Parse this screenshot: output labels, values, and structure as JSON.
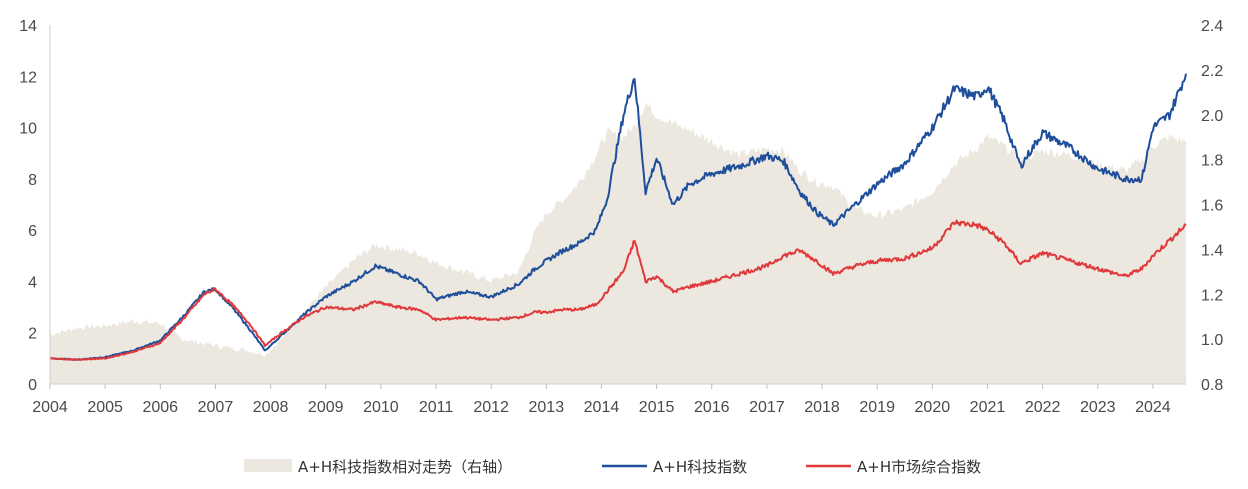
{
  "chart_data": {
    "type": "line",
    "x_ticks": [
      "2004",
      "2005",
      "2006",
      "2007",
      "2008",
      "2009",
      "2010",
      "2011",
      "2012",
      "2013",
      "2014",
      "2015",
      "2016",
      "2017",
      "2018",
      "2019",
      "2020",
      "2021",
      "2022",
      "2023",
      "2024"
    ],
    "y_left_ticks": [
      "0",
      "2",
      "4",
      "6",
      "8",
      "10",
      "12",
      "14"
    ],
    "y_right_ticks": [
      "0.8",
      "1.0",
      "1.2",
      "1.4",
      "1.6",
      "1.8",
      "2.0",
      "2.2",
      "2.4"
    ],
    "y_left_range": [
      0,
      14
    ],
    "y_right_range": [
      0.8,
      2.4
    ],
    "x_range": [
      2004.0,
      2024.6
    ],
    "grid": false,
    "legend_position": "bottom",
    "colors": {
      "area": "#ece8df",
      "tech": "#1f4e9b",
      "market": "#e0393b"
    },
    "series": [
      {
        "name": "A+H科技指数相对走势（右轴）",
        "kind": "area",
        "axis": "right",
        "x": [
          2004.0,
          2004.5,
          2005.0,
          2005.5,
          2006.0,
          2006.4,
          2006.8,
          2007.0,
          2007.3,
          2007.6,
          2007.9,
          2008.2,
          2008.6,
          2009.0,
          2009.5,
          2009.9,
          2010.3,
          2010.7,
          2011.0,
          2011.5,
          2012.0,
          2012.5,
          2012.8,
          2013.0,
          2013.3,
          2013.6,
          2013.9,
          2014.1,
          2014.4,
          2014.6,
          2014.8,
          2015.0,
          2015.3,
          2015.6,
          2016.0,
          2016.5,
          2017.0,
          2017.3,
          2017.6,
          2017.9,
          2018.2,
          2018.6,
          2019.0,
          2019.5,
          2020.0,
          2020.4,
          2020.8,
          2021.0,
          2021.3,
          2021.6,
          2022.0,
          2022.5,
          2023.0,
          2023.5,
          2023.8,
          2024.0,
          2024.3,
          2024.6
        ],
        "values": [
          1.02,
          1.05,
          1.06,
          1.08,
          1.07,
          1.0,
          0.98,
          0.97,
          0.96,
          0.95,
          0.93,
          1.0,
          1.12,
          1.23,
          1.35,
          1.42,
          1.4,
          1.38,
          1.34,
          1.3,
          1.26,
          1.3,
          1.48,
          1.56,
          1.62,
          1.7,
          1.82,
          1.92,
          1.9,
          1.95,
          2.05,
          2.0,
          1.96,
          1.93,
          1.88,
          1.82,
          1.85,
          1.84,
          1.75,
          1.7,
          1.68,
          1.58,
          1.55,
          1.58,
          1.66,
          1.78,
          1.85,
          1.9,
          1.86,
          1.8,
          1.84,
          1.82,
          1.78,
          1.75,
          1.8,
          1.86,
          1.9,
          1.88
        ]
      },
      {
        "name": "A+H科技指数",
        "kind": "line",
        "axis": "left",
        "x": [
          2004.0,
          2004.5,
          2005.0,
          2005.5,
          2006.0,
          2006.4,
          2006.8,
          2007.0,
          2007.3,
          2007.6,
          2007.9,
          2008.2,
          2008.6,
          2009.0,
          2009.5,
          2009.9,
          2010.3,
          2010.7,
          2011.0,
          2011.5,
          2012.0,
          2012.5,
          2012.8,
          2013.0,
          2013.3,
          2013.6,
          2013.9,
          2014.1,
          2014.4,
          2014.6,
          2014.8,
          2015.0,
          2015.3,
          2015.6,
          2016.0,
          2016.5,
          2017.0,
          2017.3,
          2017.6,
          2017.9,
          2018.2,
          2018.6,
          2019.0,
          2019.5,
          2020.0,
          2020.4,
          2020.8,
          2021.0,
          2021.3,
          2021.6,
          2022.0,
          2022.5,
          2023.0,
          2023.5,
          2023.8,
          2024.0,
          2024.3,
          2024.6
        ],
        "values": [
          1.0,
          0.95,
          1.05,
          1.3,
          1.7,
          2.6,
          3.6,
          3.7,
          3.0,
          2.2,
          1.3,
          1.9,
          2.7,
          3.4,
          4.0,
          4.6,
          4.3,
          4.0,
          3.3,
          3.6,
          3.4,
          3.9,
          4.5,
          4.8,
          5.2,
          5.5,
          6.0,
          7.2,
          10.5,
          12.0,
          7.5,
          8.8,
          7.0,
          7.8,
          8.2,
          8.5,
          8.9,
          8.7,
          7.5,
          6.7,
          6.2,
          7.0,
          7.8,
          8.6,
          10.0,
          11.5,
          11.2,
          11.6,
          10.3,
          8.5,
          9.8,
          9.2,
          8.4,
          8.0,
          8.0,
          10.0,
          10.5,
          12.1
        ]
      },
      {
        "name": "A+H市场综合指数",
        "kind": "line",
        "axis": "left",
        "x": [
          2004.0,
          2004.5,
          2005.0,
          2005.5,
          2006.0,
          2006.4,
          2006.8,
          2007.0,
          2007.3,
          2007.6,
          2007.9,
          2008.2,
          2008.6,
          2009.0,
          2009.5,
          2009.9,
          2010.3,
          2010.7,
          2011.0,
          2011.5,
          2012.0,
          2012.5,
          2012.8,
          2013.0,
          2013.3,
          2013.6,
          2013.9,
          2014.1,
          2014.4,
          2014.6,
          2014.8,
          2015.0,
          2015.3,
          2015.6,
          2016.0,
          2016.5,
          2017.0,
          2017.3,
          2017.6,
          2017.9,
          2018.2,
          2018.6,
          2019.0,
          2019.5,
          2020.0,
          2020.4,
          2020.8,
          2021.0,
          2021.3,
          2021.6,
          2022.0,
          2022.5,
          2023.0,
          2023.5,
          2023.8,
          2024.0,
          2024.3,
          2024.6
        ],
        "values": [
          1.0,
          0.95,
          1.0,
          1.25,
          1.6,
          2.5,
          3.5,
          3.7,
          3.1,
          2.4,
          1.5,
          2.0,
          2.6,
          3.0,
          2.9,
          3.2,
          3.0,
          2.9,
          2.5,
          2.6,
          2.5,
          2.6,
          2.8,
          2.8,
          2.9,
          2.9,
          3.1,
          3.6,
          4.4,
          5.6,
          4.0,
          4.2,
          3.6,
          3.8,
          4.0,
          4.3,
          4.6,
          5.0,
          5.2,
          4.8,
          4.3,
          4.6,
          4.8,
          4.9,
          5.3,
          6.3,
          6.2,
          6.0,
          5.5,
          4.7,
          5.1,
          4.8,
          4.5,
          4.2,
          4.5,
          5.0,
          5.6,
          6.2
        ]
      }
    ]
  }
}
